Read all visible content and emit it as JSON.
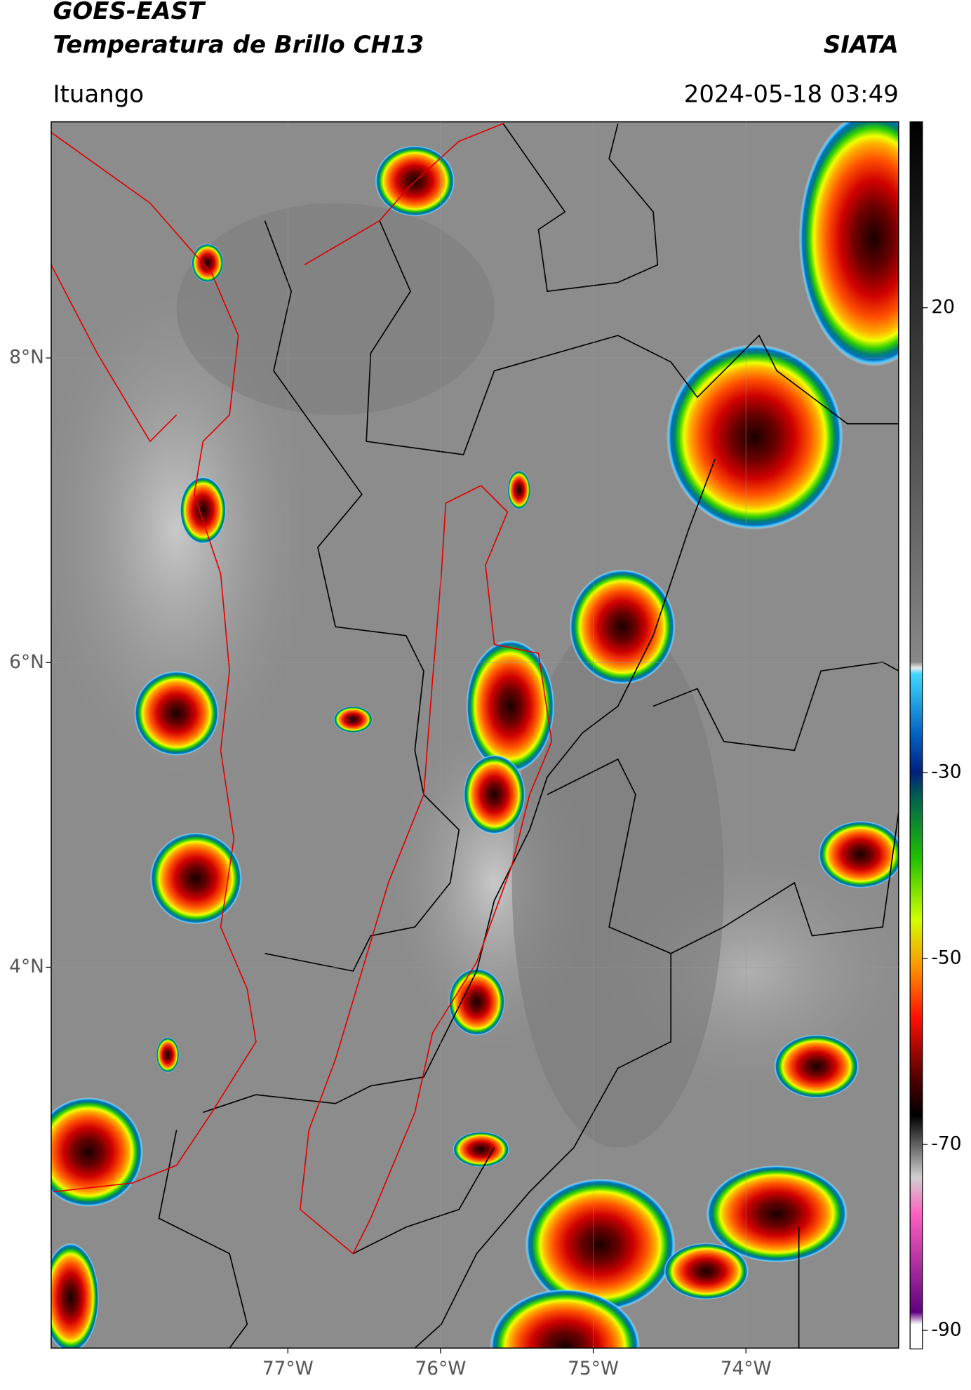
{
  "header": {
    "title_line1": "GOES-EAST",
    "title_line2": "Temperatura de Brillo CH13",
    "brand": "SIATA",
    "location": "Ituango",
    "datetime": "2024-05-18 03:49"
  },
  "map": {
    "xlim": [
      -78.55,
      -73.0
    ],
    "ylim": [
      1.5,
      9.55
    ],
    "xticks": [
      {
        "value": -77,
        "label": "77°W"
      },
      {
        "value": -76,
        "label": "76°W"
      },
      {
        "value": -75,
        "label": "75°W"
      },
      {
        "value": -74,
        "label": "74°W"
      }
    ],
    "yticks": [
      {
        "value": 8,
        "label": "8°N"
      },
      {
        "value": 6,
        "label": "6°N"
      },
      {
        "value": 4,
        "label": "4°N"
      }
    ]
  },
  "colorbar": {
    "lim": [
      -92,
      40
    ],
    "ticks": [
      20,
      -30,
      -50,
      -70,
      -90
    ]
  }
}
